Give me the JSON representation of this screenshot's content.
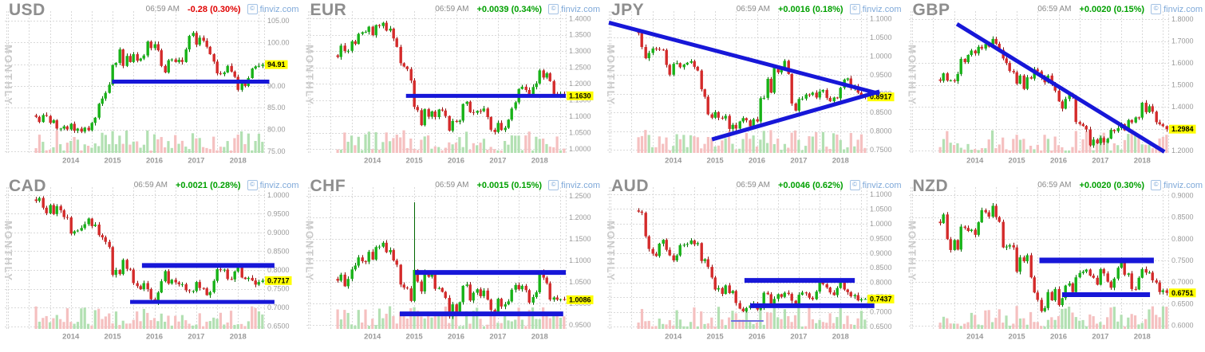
{
  "page": {
    "background": "#ffffff",
    "grid_rows": 2,
    "grid_cols": 4
  },
  "branding": {
    "icon_glyph": "©",
    "name": "finviz.com"
  },
  "colors": {
    "up": "#17b217",
    "up_dark": "#006600",
    "down": "#d42a2a",
    "down_dark": "#8a0f0f",
    "vol_up": "#b2e0b2",
    "vol_down": "#f5c0c0",
    "trend": "#1717d8",
    "trend_light": "#7070e0",
    "grid": "#d9d9d9",
    "tag_bg": "#ffff00",
    "tag_text": "#000000",
    "axis_text": "#9a9a9a",
    "year_text": "#9a9a9a"
  },
  "chart_data": [
    {
      "type": "candlestick",
      "title": "USD",
      "timeframe": "MONTHLY",
      "time": "06:59 AM",
      "change": "-0.28 (0.30%)",
      "direction": "down",
      "last_price_label": "94.91",
      "last_price": 94.91,
      "x_tick_years": [
        "2014",
        "2015",
        "2016",
        "2017",
        "2018"
      ],
      "first_month": "2013-03",
      "ylim": [
        74.6,
        106.1
      ],
      "tick_decimals": 2,
      "yticks": [
        105,
        100,
        95,
        90,
        85,
        80,
        75
      ],
      "monthly_closes": [
        82.9,
        81.7,
        83.3,
        83.1,
        81.5,
        82.1,
        80.2,
        80.2,
        80.7,
        80.0,
        81.3,
        79.7,
        80.2,
        79.5,
        80.4,
        79.8,
        81.5,
        82.7,
        85.9,
        87.1,
        88.4,
        90.3,
        94.8,
        95.3,
        98.4,
        94.6,
        96.9,
        95.5,
        97.3,
        95.8,
        96.3,
        97.0,
        100.2,
        98.7,
        99.6,
        98.2,
        94.6,
        93.1,
        95.9,
        96.1,
        95.5,
        96.0,
        95.5,
        98.4,
        101.5,
        102.2,
        99.5,
        101.1,
        100.4,
        99.0,
        97.3,
        95.6,
        92.9,
        92.7,
        93.1,
        94.6,
        93.3,
        92.1,
        89.1,
        90.6,
        90.0,
        91.8,
        94.0,
        94.5,
        94.6,
        94.91
      ],
      "has_volume": true,
      "trendlines": [
        {
          "x1": 0.41,
          "y1": 91.0,
          "x2": 1.02,
          "y2": 91.0,
          "w": 5
        }
      ]
    },
    {
      "type": "candlestick",
      "title": "EUR",
      "timeframe": "MONTHLY",
      "time": "06:59 AM",
      "change": "+0.0039 (0.34%)",
      "direction": "up",
      "last_price_label": "1.1630",
      "last_price": 1.163,
      "x_tick_years": [
        "2014",
        "2015",
        "2016",
        "2017",
        "2018"
      ],
      "first_month": "2013-03",
      "ylim": [
        0.988,
        1.408
      ],
      "tick_decimals": 4,
      "yticks": [
        1.4,
        1.35,
        1.3,
        1.25,
        1.2,
        1.15,
        1.1,
        1.05,
        1.0
      ],
      "monthly_closes": [
        1.282,
        1.317,
        1.3,
        1.301,
        1.33,
        1.322,
        1.353,
        1.358,
        1.359,
        1.375,
        1.349,
        1.38,
        1.377,
        1.387,
        1.363,
        1.369,
        1.339,
        1.313,
        1.263,
        1.253,
        1.245,
        1.21,
        1.129,
        1.119,
        1.073,
        1.122,
        1.099,
        1.115,
        1.098,
        1.121,
        1.118,
        1.101,
        1.056,
        1.086,
        1.083,
        1.087,
        1.138,
        1.145,
        1.113,
        1.111,
        1.117,
        1.116,
        1.124,
        1.098,
        1.059,
        1.052,
        1.08,
        1.058,
        1.065,
        1.09,
        1.124,
        1.143,
        1.184,
        1.191,
        1.181,
        1.165,
        1.19,
        1.201,
        1.241,
        1.219,
        1.232,
        1.208,
        1.169,
        1.168,
        1.169,
        1.163
      ],
      "has_volume": true,
      "trendlines": [
        {
          "x1": 0.38,
          "y1": 1.163,
          "x2": 1.0,
          "y2": 1.163,
          "w": 5
        }
      ]
    },
    {
      "type": "candlestick",
      "title": "JPY",
      "timeframe": "MONTHLY",
      "time": "06:59 AM",
      "change": "+0.0016 (0.18%)",
      "direction": "up",
      "last_price_label": "0.8917",
      "last_price": 0.8917,
      "tag_under_lines": true,
      "x_tick_years": [
        "2014",
        "2015",
        "2016",
        "2017",
        "2018"
      ],
      "first_month": "2013-03",
      "ylim": [
        0.742,
        1.108
      ],
      "tick_decimals": 4,
      "yticks": [
        1.1,
        1.05,
        1.0,
        0.95,
        0.9,
        0.85,
        0.8,
        0.75
      ],
      "monthly_closes": [
        1.062,
        1.025,
        0.995,
        1.009,
        1.021,
        1.02,
        1.018,
        1.017,
        0.977,
        0.951,
        0.98,
        0.982,
        0.971,
        0.978,
        0.983,
        0.987,
        0.972,
        0.962,
        0.912,
        0.892,
        0.845,
        0.836,
        0.851,
        0.836,
        0.834,
        0.841,
        0.806,
        0.817,
        0.807,
        0.826,
        0.835,
        0.829,
        0.813,
        0.832,
        0.826,
        0.888,
        0.889,
        0.94,
        0.903,
        0.971,
        0.957,
        0.967,
        0.988,
        0.953,
        0.874,
        0.855,
        0.886,
        0.887,
        0.898,
        0.897,
        0.903,
        0.89,
        0.906,
        0.91,
        0.889,
        0.88,
        0.89,
        0.888,
        0.916,
        0.938,
        0.941,
        0.915,
        0.92,
        0.903,
        0.895,
        0.8917
      ],
      "has_volume": true,
      "trendlines": [
        {
          "x1": 0.0,
          "y1": 1.09,
          "x2": 1.05,
          "y2": 0.9,
          "w": 5
        },
        {
          "x1": 0.4,
          "y1": 0.778,
          "x2": 1.05,
          "y2": 0.906,
          "w": 5
        }
      ]
    },
    {
      "type": "candlestick",
      "title": "GBP",
      "timeframe": "MONTHLY",
      "time": "06:59 AM",
      "change": "+0.0020 (0.15%)",
      "direction": "up",
      "last_price_label": "1.2984",
      "last_price": 1.2984,
      "x_tick_years": [
        "2014",
        "2015",
        "2016",
        "2017",
        "2018"
      ],
      "first_month": "2013-03",
      "ylim": [
        1.19,
        1.815
      ],
      "tick_decimals": 4,
      "yticks": [
        1.8,
        1.7,
        1.6,
        1.5,
        1.4,
        1.3,
        1.2
      ],
      "monthly_closes": [
        1.519,
        1.553,
        1.52,
        1.521,
        1.517,
        1.55,
        1.619,
        1.604,
        1.637,
        1.657,
        1.644,
        1.674,
        1.666,
        1.687,
        1.675,
        1.71,
        1.688,
        1.66,
        1.621,
        1.6,
        1.564,
        1.558,
        1.506,
        1.543,
        1.482,
        1.535,
        1.529,
        1.571,
        1.562,
        1.535,
        1.512,
        1.543,
        1.505,
        1.474,
        1.425,
        1.392,
        1.436,
        1.461,
        1.448,
        1.331,
        1.322,
        1.313,
        1.297,
        1.224,
        1.251,
        1.234,
        1.258,
        1.238,
        1.255,
        1.295,
        1.289,
        1.303,
        1.321,
        1.293,
        1.34,
        1.329,
        1.352,
        1.351,
        1.419,
        1.376,
        1.403,
        1.378,
        1.33,
        1.321,
        1.312,
        1.2984
      ],
      "has_volume": true,
      "trendlines": [
        {
          "x1": 0.18,
          "y1": 1.778,
          "x2": 0.985,
          "y2": 1.195,
          "w": 5
        }
      ]
    },
    {
      "type": "candlestick",
      "title": "CAD",
      "timeframe": "MONTHLY",
      "time": "06:59 AM",
      "change": "+0.0021 (0.28%)",
      "direction": "up",
      "last_price_label": "0.7717",
      "last_price": 0.7717,
      "x_tick_years": [
        "2014",
        "2015",
        "2016",
        "2017",
        "2018"
      ],
      "first_month": "2013-03",
      "ylim": [
        0.643,
        1.008
      ],
      "tick_decimals": 4,
      "yticks": [
        1.0,
        0.95,
        0.9,
        0.85,
        0.8,
        0.75,
        0.7,
        0.65
      ],
      "monthly_closes": [
        0.984,
        0.992,
        0.966,
        0.951,
        0.973,
        0.949,
        0.97,
        0.959,
        0.941,
        0.94,
        0.897,
        0.903,
        0.905,
        0.912,
        0.922,
        0.937,
        0.917,
        0.921,
        0.893,
        0.887,
        0.875,
        0.861,
        0.787,
        0.8,
        0.789,
        0.827,
        0.803,
        0.801,
        0.765,
        0.757,
        0.749,
        0.765,
        0.749,
        0.722,
        0.713,
        0.74,
        0.77,
        0.797,
        0.764,
        0.774,
        0.767,
        0.762,
        0.762,
        0.746,
        0.744,
        0.744,
        0.768,
        0.752,
        0.751,
        0.733,
        0.741,
        0.771,
        0.802,
        0.801,
        0.801,
        0.776,
        0.775,
        0.796,
        0.813,
        0.78,
        0.776,
        0.779,
        0.772,
        0.761,
        0.768,
        0.7717
      ],
      "has_volume": true,
      "trendlines": [
        {
          "x1": 0.526,
          "y1": 0.812,
          "x2": 1.04,
          "y2": 0.812,
          "w": 6
        },
        {
          "x1": 0.48,
          "y1": 0.715,
          "x2": 1.04,
          "y2": 0.715,
          "w": 5
        }
      ]
    },
    {
      "type": "candlestick",
      "title": "CHF",
      "timeframe": "MONTHLY",
      "time": "06:59 AM",
      "change": "+0.0015 (0.15%)",
      "direction": "up",
      "last_price_label": "1.0086",
      "last_price": 1.0086,
      "x_tick_years": [
        "2014",
        "2015",
        "2016",
        "2017",
        "2018"
      ],
      "first_month": "2013-03",
      "ylim": [
        0.941,
        1.259
      ],
      "tick_decimals": 4,
      "yticks": [
        1.25,
        1.2,
        1.15,
        1.1,
        1.05,
        1.0,
        0.95
      ],
      "monthly_closes": [
        1.053,
        1.067,
        1.04,
        1.057,
        1.079,
        1.088,
        1.107,
        1.098,
        1.097,
        1.12,
        1.102,
        1.131,
        1.132,
        1.141,
        1.119,
        1.124,
        1.1,
        1.09,
        1.044,
        1.037,
        1.035,
        1.006,
        1.078,
        1.051,
        1.028,
        1.074,
        1.062,
        1.069,
        1.034,
        1.036,
        1.027,
        1.013,
        0.97,
        0.998,
        0.978,
        1.003,
        1.041,
        1.044,
        1.007,
        1.025,
        1.033,
        1.017,
        1.03,
        1.009,
        0.985,
        0.981,
        1.011,
        0.993,
        0.998,
        1.005,
        1.032,
        1.043,
        1.033,
        1.041,
        1.031,
        1.002,
        1.015,
        1.026,
        1.073,
        1.06,
        1.047,
        1.009,
        1.014,
        1.009,
        1.01,
        1.0086
      ],
      "has_volume": true,
      "spike_highs": [
        {
          "index": 22,
          "high": 1.235
        }
      ],
      "trendlines": [
        {
          "x1": 0.415,
          "y1": 1.072,
          "x2": 1.0,
          "y2": 1.072,
          "w": 6
        },
        {
          "x1": 0.356,
          "y1": 0.976,
          "x2": 0.99,
          "y2": 0.976,
          "w": 6
        }
      ]
    },
    {
      "type": "candlestick",
      "title": "AUD",
      "timeframe": "MONTHLY",
      "time": "06:59 AM",
      "change": "+0.0046 (0.62%)",
      "direction": "up",
      "last_price_label": "0.7437",
      "last_price": 0.7437,
      "x_tick_years": [
        "2014",
        "2015",
        "2016",
        "2017",
        "2018"
      ],
      "first_month": "2013-03",
      "ylim": [
        0.642,
        1.108
      ],
      "tick_decimals": 4,
      "yticks": [
        1.1,
        1.05,
        1.0,
        0.95,
        0.9,
        0.85,
        0.8,
        0.75,
        0.7,
        0.65
      ],
      "monthly_closes": [
        1.041,
        1.037,
        0.957,
        0.914,
        0.898,
        0.89,
        0.932,
        0.945,
        0.911,
        0.892,
        0.875,
        0.892,
        0.927,
        0.928,
        0.931,
        0.943,
        0.93,
        0.934,
        0.873,
        0.879,
        0.853,
        0.817,
        0.776,
        0.781,
        0.761,
        0.79,
        0.764,
        0.771,
        0.73,
        0.711,
        0.702,
        0.713,
        0.722,
        0.728,
        0.708,
        0.713,
        0.765,
        0.76,
        0.723,
        0.744,
        0.76,
        0.751,
        0.765,
        0.761,
        0.738,
        0.722,
        0.758,
        0.766,
        0.763,
        0.748,
        0.743,
        0.769,
        0.799,
        0.794,
        0.783,
        0.766,
        0.757,
        0.781,
        0.805,
        0.776,
        0.767,
        0.753,
        0.757,
        0.739,
        0.743,
        0.7437
      ],
      "has_volume": true,
      "trendlines": [
        {
          "x1": 0.526,
          "y1": 0.807,
          "x2": 0.954,
          "y2": 0.807,
          "w": 6
        },
        {
          "x1": 0.548,
          "y1": 0.721,
          "x2": 1.03,
          "y2": 0.721,
          "w": 6
        },
        {
          "x1": 0.474,
          "y1": 0.669,
          "x2": 0.6,
          "y2": 0.669,
          "w": 2,
          "light": true
        }
      ]
    },
    {
      "type": "candlestick",
      "title": "NZD",
      "timeframe": "MONTHLY",
      "time": "06:59 AM",
      "change": "+0.0020 (0.30%)",
      "direction": "up",
      "last_price_label": "0.6751",
      "last_price": 0.6751,
      "x_tick_years": [
        "2014",
        "2015",
        "2016",
        "2017",
        "2018"
      ],
      "first_month": "2013-03",
      "ylim": [
        0.592,
        0.908
      ],
      "tick_decimals": 4,
      "yticks": [
        0.9,
        0.85,
        0.8,
        0.75,
        0.7,
        0.65,
        0.6
      ],
      "monthly_closes": [
        0.836,
        0.856,
        0.799,
        0.774,
        0.797,
        0.775,
        0.828,
        0.825,
        0.818,
        0.821,
        0.809,
        0.838,
        0.866,
        0.861,
        0.851,
        0.876,
        0.85,
        0.839,
        0.78,
        0.782,
        0.785,
        0.78,
        0.724,
        0.757,
        0.748,
        0.762,
        0.711,
        0.676,
        0.659,
        0.633,
        0.64,
        0.677,
        0.658,
        0.684,
        0.647,
        0.663,
        0.692,
        0.697,
        0.677,
        0.711,
        0.721,
        0.724,
        0.729,
        0.715,
        0.71,
        0.694,
        0.73,
        0.72,
        0.701,
        0.687,
        0.708,
        0.733,
        0.751,
        0.717,
        0.72,
        0.684,
        0.683,
        0.71,
        0.73,
        0.722,
        0.722,
        0.704,
        0.699,
        0.677,
        0.681,
        0.6751
      ],
      "has_volume": true,
      "trendlines": [
        {
          "x1": 0.5,
          "y1": 0.75,
          "x2": 0.944,
          "y2": 0.75,
          "w": 7
        },
        {
          "x1": 0.588,
          "y1": 0.671,
          "x2": 0.929,
          "y2": 0.671,
          "w": 6
        }
      ]
    }
  ]
}
